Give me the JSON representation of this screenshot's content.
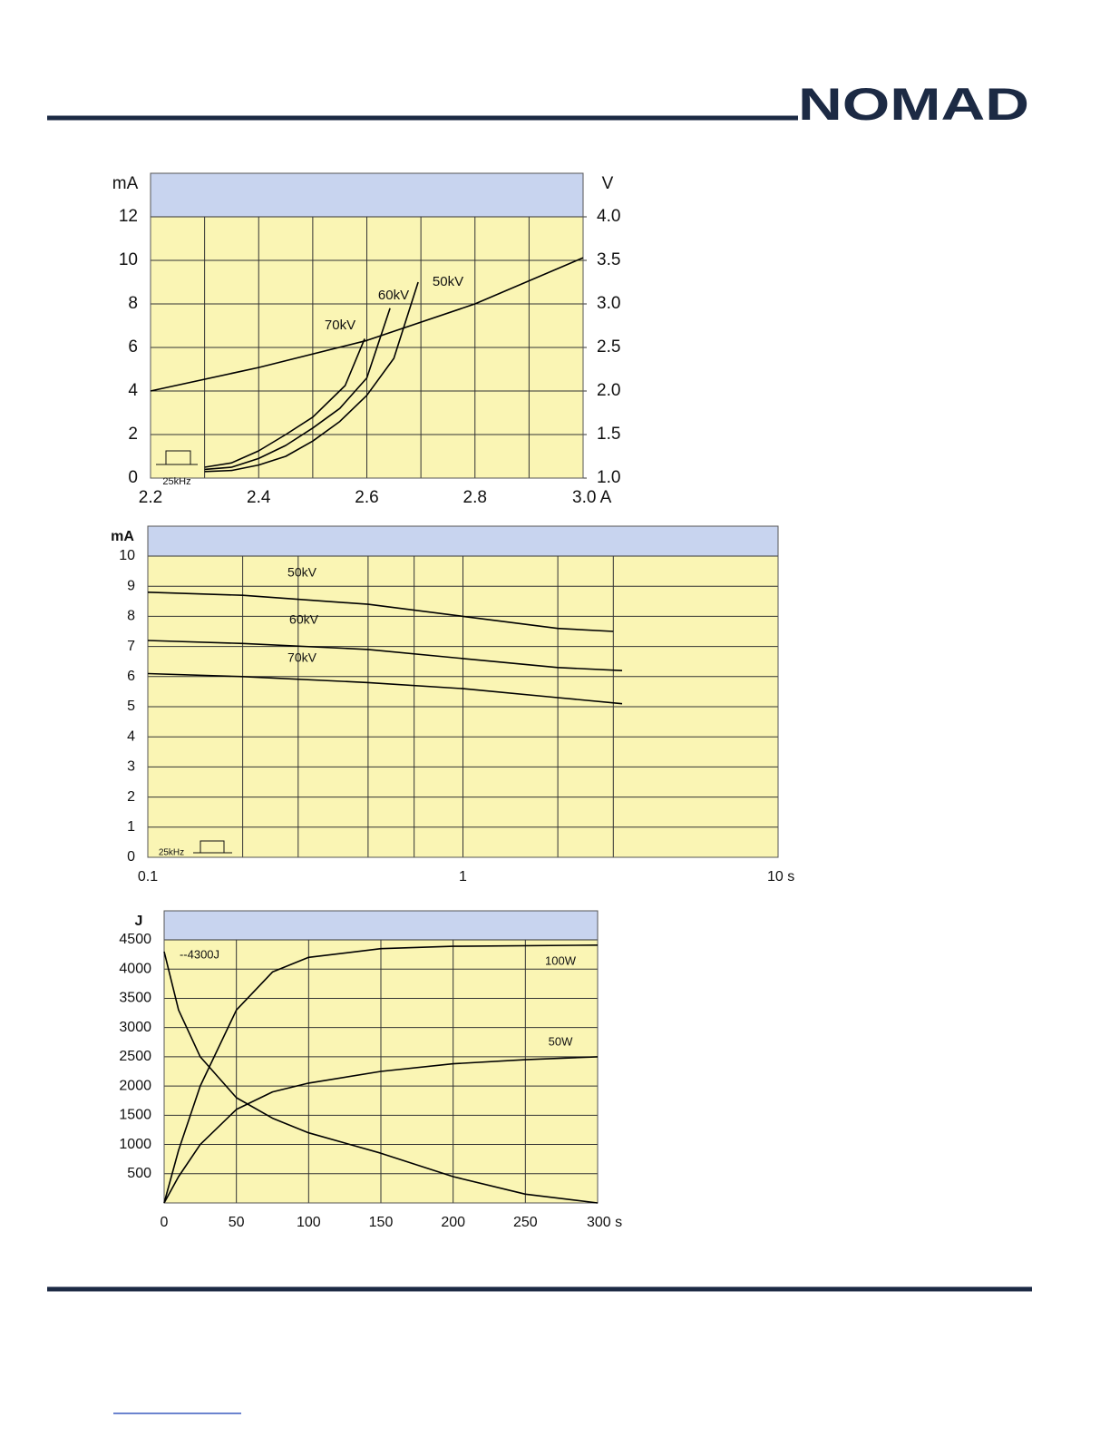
{
  "header": {
    "logo": "NOMAD"
  },
  "chart_data": [
    {
      "type": "line",
      "ylabel": "mA",
      "y2label": "V",
      "xlim": [
        2.2,
        3.0
      ],
      "xticks": [
        2.2,
        2.4,
        2.6,
        2.8,
        {
          "value": 3.0,
          "label": "3.0 A"
        }
      ],
      "xgrid": [
        2.3,
        2.5,
        2.7,
        2.9
      ],
      "ylim": [
        0,
        12
      ],
      "yticks": [
        0,
        2,
        4,
        6,
        8,
        10,
        12
      ],
      "y2lim": [
        1,
        4
      ],
      "y2ticks": [
        {
          "value": 1,
          "label": "1.0"
        },
        1.5,
        {
          "value": 2,
          "label": "2.0"
        },
        2.5,
        {
          "value": 3,
          "label": "3.0"
        },
        3.5,
        {
          "value": 4,
          "label": "4.0"
        }
      ],
      "grid": true,
      "annotation": "25kHz",
      "series": [
        {
          "color": "#000000",
          "axis": "y2",
          "x": [
            2.2,
            2.4,
            2.6,
            2.8,
            3.0
          ],
          "values": [
            2.0,
            2.27,
            2.58,
            3.0,
            3.53
          ]
        },
        {
          "name": "70kV",
          "color": "#000000",
          "x": [
            2.3,
            2.35,
            2.4,
            2.45,
            2.5,
            2.56,
            2.596
          ],
          "values": [
            0.5,
            0.7,
            1.25,
            2.0,
            2.8,
            4.25,
            6.4
          ]
        },
        {
          "name": "60kV",
          "color": "#000000",
          "x": [
            2.3,
            2.35,
            2.4,
            2.45,
            2.5,
            2.55,
            2.6,
            2.643
          ],
          "values": [
            0.4,
            0.5,
            0.9,
            1.5,
            2.3,
            3.2,
            4.6,
            7.8
          ]
        },
        {
          "name": "50kV",
          "color": "#000000",
          "x": [
            2.3,
            2.35,
            2.4,
            2.45,
            2.5,
            2.55,
            2.6,
            2.65,
            2.695
          ],
          "values": [
            0.3,
            0.35,
            0.6,
            1.0,
            1.7,
            2.6,
            3.8,
            5.5,
            9.0
          ]
        }
      ]
    },
    {
      "type": "line",
      "ylabel": "mA",
      "xscale": "log",
      "xlim": [
        0.1,
        10
      ],
      "xticks": [
        0.1,
        1,
        {
          "value": 10,
          "label": "10 s"
        }
      ],
      "xgrid": [
        0.2,
        0.3,
        0.5,
        0.7,
        2,
        3
      ],
      "ylim": [
        0,
        10
      ],
      "yticks": [
        0,
        1,
        2,
        3,
        4,
        5,
        6,
        7,
        8,
        9,
        10
      ],
      "grid": true,
      "annotation": "25kHz",
      "series": [
        {
          "name": "50kV",
          "color": "#000000",
          "x": [
            0.1,
            0.2,
            0.5,
            1,
            2,
            3
          ],
          "values": [
            8.8,
            8.7,
            8.4,
            8.0,
            7.6,
            7.5
          ]
        },
        {
          "name": "60kV",
          "color": "#000000",
          "x": [
            0.1,
            0.2,
            0.5,
            1,
            2,
            3.2
          ],
          "values": [
            7.2,
            7.1,
            6.9,
            6.6,
            6.3,
            6.2
          ]
        },
        {
          "name": "70kV",
          "color": "#000000",
          "x": [
            0.1,
            0.2,
            0.5,
            1,
            2,
            3.2
          ],
          "values": [
            6.1,
            6.0,
            5.8,
            5.6,
            5.3,
            5.1
          ]
        }
      ]
    },
    {
      "type": "line",
      "ylabel": "J",
      "xlim": [
        0,
        300
      ],
      "xticks": [
        0,
        50,
        100,
        150,
        200,
        250,
        {
          "value": 300,
          "label": "300 s"
        }
      ],
      "ylim": [
        0,
        4500
      ],
      "yticks": [
        500,
        1000,
        1500,
        2000,
        2500,
        3000,
        3500,
        4000,
        4500
      ],
      "grid": true,
      "annotation": "--4300J",
      "series": [
        {
          "name": "100W",
          "color": "#000000",
          "x": [
            0,
            10,
            25,
            50,
            75,
            100,
            150,
            200,
            300
          ],
          "values": [
            0,
            900,
            2000,
            3300,
            3950,
            4200,
            4350,
            4390,
            4410
          ]
        },
        {
          "name": "50W",
          "color": "#000000",
          "x": [
            0,
            10,
            25,
            50,
            75,
            100,
            150,
            200,
            250,
            300
          ],
          "values": [
            0,
            450,
            1000,
            1600,
            1900,
            2050,
            2250,
            2380,
            2450,
            2500
          ]
        },
        {
          "color": "#000000",
          "x": [
            0,
            10,
            25,
            50,
            75,
            100,
            150,
            200,
            250,
            300
          ],
          "values": [
            4300,
            3300,
            2500,
            1800,
            1450,
            1200,
            850,
            450,
            150,
            0
          ]
        }
      ]
    }
  ]
}
